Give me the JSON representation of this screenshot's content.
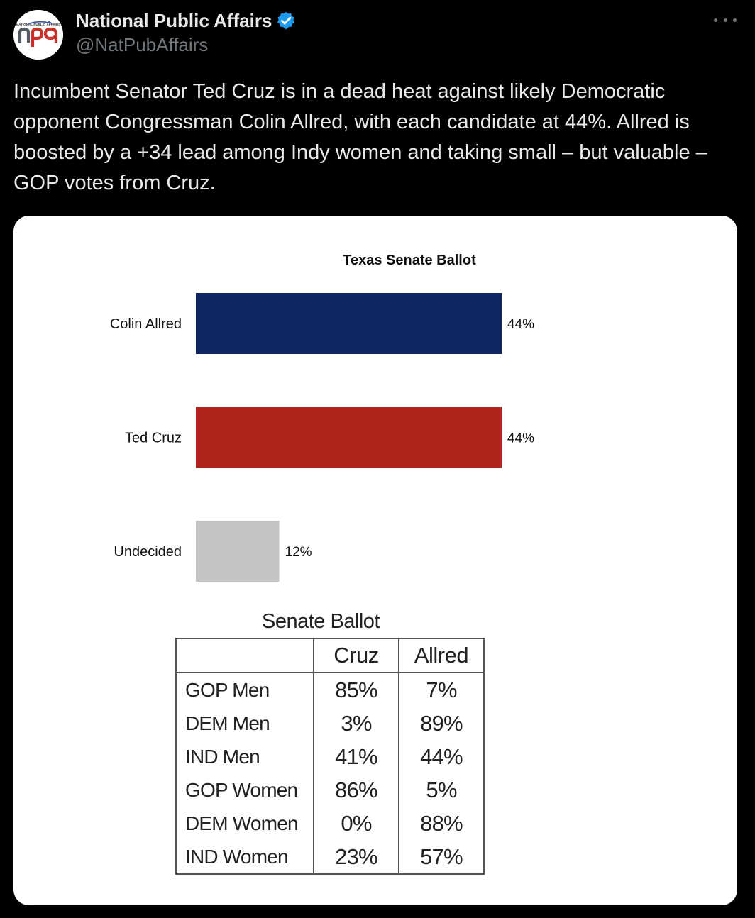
{
  "account": {
    "display_name": "National Public Affairs",
    "handle": "@NatPubAffairs",
    "avatar_text_top": "NATIONAL PUBLIC AFFAIRS",
    "avatar_letters": "npa",
    "verified_color": "#1d9bf0"
  },
  "tweet": {
    "text": "Incumbent Senator Ted Cruz is in a dead heat against likely Democratic opponent Congressman Colin Allred, with each candidate at 44%. Allred is boosted by a +34 lead among Indy women and taking small – but valuable – GOP votes from Cruz."
  },
  "chart_data": [
    {
      "type": "bar",
      "orientation": "horizontal",
      "title": "Texas Senate Ballot",
      "categories": [
        "Colin Allred",
        "Ted Cruz",
        "Undecided"
      ],
      "values": [
        44,
        44,
        12
      ],
      "value_labels": [
        "44%",
        "44%",
        "12%"
      ],
      "colors": [
        "#102563",
        "#b0231c",
        "#c4c4c4"
      ],
      "xlim": [
        0,
        44
      ],
      "grid": false,
      "legend": "none"
    },
    {
      "type": "table",
      "title": "Senate Ballot",
      "columns": [
        "",
        "Cruz",
        "Allred"
      ],
      "rows": [
        {
          "label": "GOP Men",
          "cruz": "85%",
          "allred": "7%"
        },
        {
          "label": "DEM Men",
          "cruz": "3%",
          "allred": "89%"
        },
        {
          "label": "IND Men",
          "cruz": "41%",
          "allred": "44%"
        },
        {
          "label": "GOP Women",
          "cruz": "86%",
          "allred": "5%"
        },
        {
          "label": "DEM Women",
          "cruz": "0%",
          "allred": "88%"
        },
        {
          "label": "IND Women",
          "cruz": "23%",
          "allred": "57%"
        }
      ]
    }
  ]
}
